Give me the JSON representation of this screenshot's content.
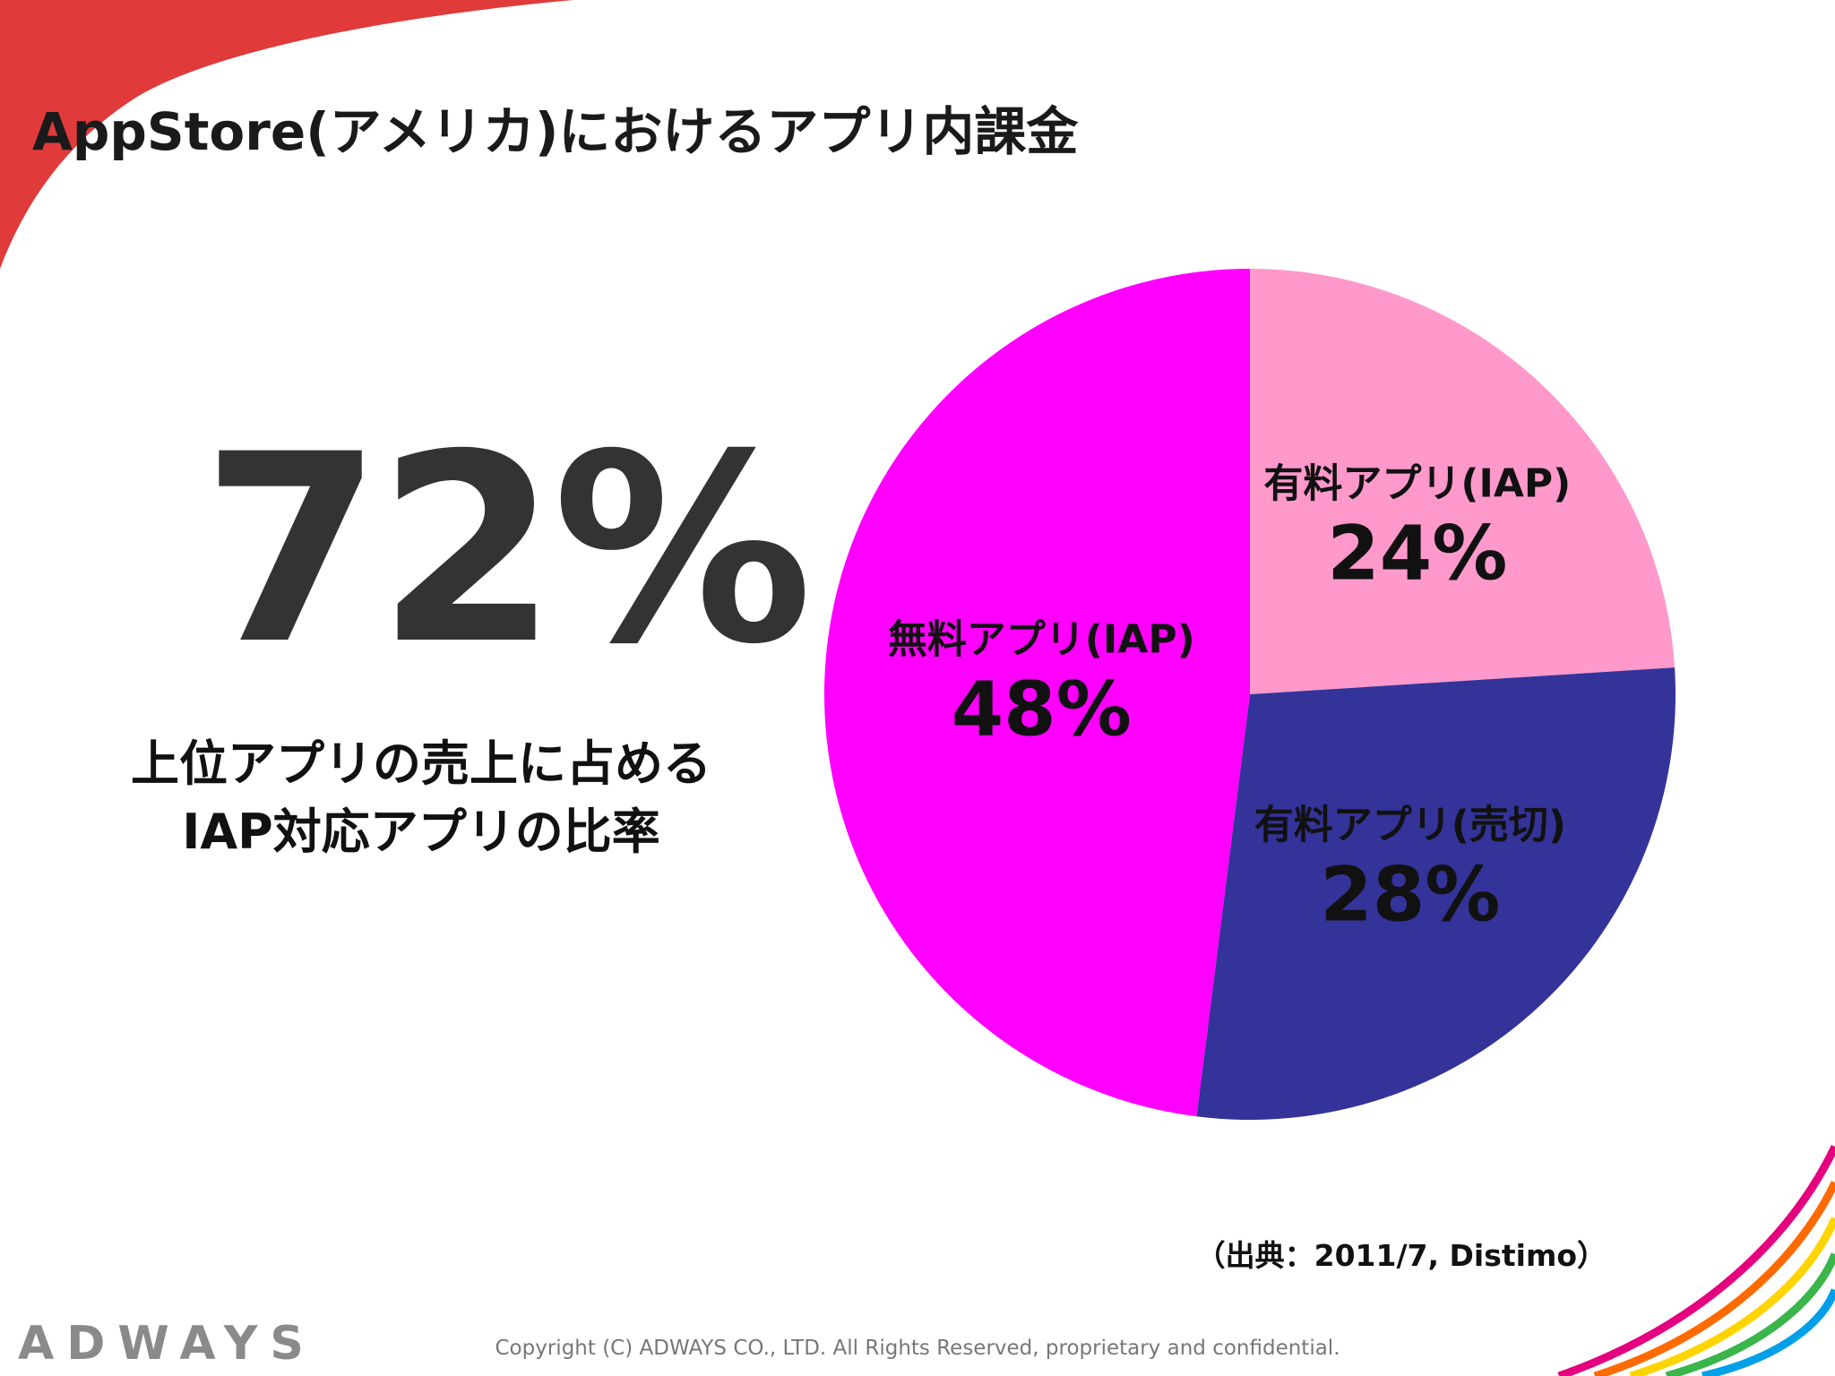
{
  "title": "AppStore(アメリカ)におけるアプリ内課金",
  "headline": {
    "value": "72%",
    "caption_line1": "上位アプリの売上に占める",
    "caption_line2": "IAP対応アプリの比率"
  },
  "source_note": "（出典：2011/7, Distimo）",
  "footer": {
    "logo": "ADWAYS",
    "copyright": "Copyright (C) ADWAYS CO., LTD. All Rights Reserved, proprietary and confidential."
  },
  "chart_data": {
    "type": "pie",
    "title": "",
    "slices": [
      {
        "label": "有料アプリ(IAP)",
        "value": 24,
        "value_label": "24%",
        "color": "#ff99cc"
      },
      {
        "label": "有料アプリ(売切)",
        "value": 28,
        "value_label": "28%",
        "color": "#333399"
      },
      {
        "label": "無料アプリ(IAP)",
        "value": 48,
        "value_label": "48%",
        "color": "#ff00ff"
      }
    ],
    "start": "12 o'clock",
    "direction": "clockwise",
    "legend": "none",
    "labels": "inside"
  },
  "colors": {
    "accent_red": "#e03a3a",
    "text_dark": "#1a1a1a",
    "logo_gray": "#8a8a8a",
    "headline_gray": "#333333"
  },
  "decorations": {
    "top_left": "red-swoosh",
    "bottom_right": "rainbow-arcs"
  }
}
